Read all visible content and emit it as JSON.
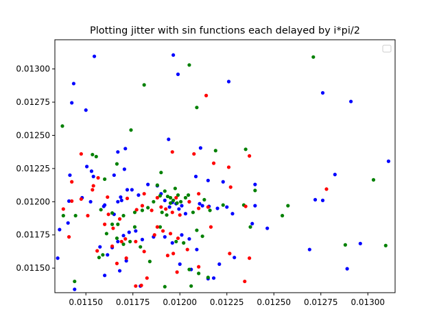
{
  "chart_data": {
    "type": "scatter",
    "title": "Plotting jitter with sin functions each delayed by i*pi/2",
    "xlabel": "",
    "ylabel": "",
    "xlim": [
      0.011335,
      0.013145
    ],
    "ylim": [
      0.011315,
      0.01322
    ],
    "x_ticks": [
      0.0115,
      0.01175,
      0.012,
      0.01225,
      0.0125,
      0.01275,
      0.013
    ],
    "x_tick_labels": [
      "0.01150",
      "0.01175",
      "0.01200",
      "0.01225",
      "0.01250",
      "0.01275",
      "0.01300"
    ],
    "y_ticks": [
      0.0115,
      0.01175,
      0.012,
      0.01225,
      0.0125,
      0.01275,
      0.013
    ],
    "y_tick_labels": [
      "0.01150",
      "0.01175",
      "0.01200",
      "0.01225",
      "0.01250",
      "0.01275",
      "0.01300"
    ],
    "legend": {
      "placement": "top-right",
      "entries": []
    },
    "grid": false,
    "series": [
      {
        "color": "#0000ff",
        "points": [
          [
            0.011545,
            0.013095
          ],
          [
            0.011435,
            0.01289
          ],
          [
            0.011965,
            0.013105
          ],
          [
            0.01199,
            0.01296
          ],
          [
            0.01226,
            0.012905
          ],
          [
            0.01276,
            0.01282
          ],
          [
            0.01291,
            0.012755
          ],
          [
            0.011425,
            0.012745
          ],
          [
            0.0115,
            0.01269
          ],
          [
            0.01194,
            0.01247
          ],
          [
            0.01171,
            0.0124
          ],
          [
            0.01211,
            0.012405
          ],
          [
            0.01167,
            0.012375
          ],
          [
            0.011505,
            0.012265
          ],
          [
            0.01153,
            0.01223
          ],
          [
            0.011415,
            0.0122
          ],
          [
            0.01165,
            0.0122
          ],
          [
            0.011705,
            0.012245
          ],
          [
            0.012085,
            0.01219
          ],
          [
            0.01215,
            0.01216
          ],
          [
            0.01223,
            0.01215
          ],
          [
            0.0124,
            0.01213
          ],
          [
            0.012825,
            0.012205
          ],
          [
            0.01311,
            0.012305
          ],
          [
            0.01136,
            0.01179
          ],
          [
            0.011405,
            0.01184
          ],
          [
            0.01141,
            0.012005
          ],
          [
            0.01148,
            0.01203
          ],
          [
            0.011525,
            0.012
          ],
          [
            0.011595,
            0.011965
          ],
          [
            0.0116,
            0.011975
          ],
          [
            0.01165,
            0.011905
          ],
          [
            0.01167,
            0.012
          ],
          [
            0.011685,
            0.012035
          ],
          [
            0.01172,
            0.01209
          ],
          [
            0.011745,
            0.01209
          ],
          [
            0.01178,
            0.01205
          ],
          [
            0.01183,
            0.01213
          ],
          [
            0.01188,
            0.01212
          ],
          [
            0.0119,
            0.01206
          ],
          [
            0.01192,
            0.01201
          ],
          [
            0.011945,
            0.01196
          ],
          [
            0.01196,
            0.011995
          ],
          [
            0.01198,
            0.011985
          ],
          [
            0.011995,
            0.011945
          ],
          [
            0.01201,
            0.01197
          ],
          [
            0.01203,
            0.01191
          ],
          [
            0.01205,
            0.012
          ],
          [
            0.012105,
            0.011985
          ],
          [
            0.01212,
            0.01197
          ],
          [
            0.012155,
            0.011965
          ],
          [
            0.0122,
            0.01195
          ],
          [
            0.01225,
            0.01196
          ],
          [
            0.012385,
            0.011835
          ],
          [
            0.0124,
            0.01197
          ],
          [
            0.012465,
            0.0118
          ],
          [
            0.01276,
            0.01201
          ],
          [
            0.01269,
            0.01164
          ],
          [
            0.01135,
            0.011575
          ],
          [
            0.011575,
            0.01166
          ],
          [
            0.011615,
            0.0116
          ],
          [
            0.01164,
            0.011655
          ],
          [
            0.01167,
            0.0117
          ],
          [
            0.0117,
            0.011745
          ],
          [
            0.01173,
            0.01177
          ],
          [
            0.011765,
            0.01178
          ],
          [
            0.0118,
            0.011715
          ],
          [
            0.01186,
            0.011735
          ],
          [
            0.01192,
            0.011735
          ],
          [
            0.01196,
            0.01169
          ],
          [
            0.01201,
            0.01175
          ],
          [
            0.01205,
            0.01172
          ],
          [
            0.01209,
            0.01164
          ],
          [
            0.012,
            0.01153
          ],
          [
            0.01206,
            0.01149
          ],
          [
            0.01215,
            0.01142
          ],
          [
            0.01218,
            0.011425
          ],
          [
            0.01221,
            0.01153
          ],
          [
            0.01229,
            0.01158
          ],
          [
            0.0116,
            0.011445
          ],
          [
            0.01168,
            0.01148
          ],
          [
            0.011715,
            0.011555
          ],
          [
            0.01179,
            0.011365
          ],
          [
            0.01144,
            0.01134
          ],
          [
            0.01289,
            0.011495
          ],
          [
            0.01296,
            0.011685
          ],
          [
            0.01272,
            0.012015
          ],
          [
            0.01154,
            0.01219
          ],
          [
            0.01169,
            0.01201
          ],
          [
            0.01228,
            0.01191
          ]
        ]
      },
      {
        "color": "#008000",
        "points": [
          [
            0.0116,
            0.01217
          ],
          [
            0.0119,
            0.01222
          ],
          [
            0.01205,
            0.01303
          ],
          [
            0.01271,
            0.01309
          ],
          [
            0.01181,
            0.01288
          ],
          [
            0.01209,
            0.01271
          ],
          [
            0.011375,
            0.01257
          ],
          [
            0.01174,
            0.01254
          ],
          [
            0.011535,
            0.012355
          ],
          [
            0.011555,
            0.01234
          ],
          [
            0.011665,
            0.012285
          ],
          [
            0.01219,
            0.012385
          ],
          [
            0.01235,
            0.012395
          ],
          [
            0.0124,
            0.012085
          ],
          [
            0.01303,
            0.012165
          ],
          [
            0.012575,
            0.01197
          ],
          [
            0.012545,
            0.011895
          ],
          [
            0.01138,
            0.011895
          ],
          [
            0.011445,
            0.011895
          ],
          [
            0.01158,
            0.01194
          ],
          [
            0.01164,
            0.011915
          ],
          [
            0.01167,
            0.01183
          ],
          [
            0.0117,
            0.011895
          ],
          [
            0.01176,
            0.01192
          ],
          [
            0.0118,
            0.011935
          ],
          [
            0.01183,
            0.011955
          ],
          [
            0.01186,
            0.012
          ],
          [
            0.01188,
            0.012125
          ],
          [
            0.011895,
            0.012045
          ],
          [
            0.01192,
            0.01208
          ],
          [
            0.011935,
            0.01204
          ],
          [
            0.01195,
            0.01203
          ],
          [
            0.011965,
            0.01201
          ],
          [
            0.011975,
            0.0121
          ],
          [
            0.011985,
            0.01199
          ],
          [
            0.012005,
            0.012
          ],
          [
            0.01203,
            0.01203
          ],
          [
            0.012045,
            0.01205
          ],
          [
            0.01207,
            0.01192
          ],
          [
            0.01213,
            0.012015
          ],
          [
            0.01216,
            0.011935
          ],
          [
            0.01223,
            0.011975
          ],
          [
            0.01234,
            0.011975
          ],
          [
            0.012375,
            0.01181
          ],
          [
            0.01157,
            0.01158
          ],
          [
            0.01159,
            0.0116
          ],
          [
            0.01161,
            0.01176
          ],
          [
            0.01164,
            0.01183
          ],
          [
            0.011665,
            0.011725
          ],
          [
            0.0117,
            0.01168
          ],
          [
            0.011735,
            0.0117
          ],
          [
            0.01176,
            0.01181
          ],
          [
            0.01179,
            0.01166
          ],
          [
            0.01184,
            0.01155
          ],
          [
            0.011895,
            0.01181
          ],
          [
            0.01193,
            0.0119
          ],
          [
            0.01198,
            0.0117
          ],
          [
            0.01202,
            0.01169
          ],
          [
            0.01205,
            0.01149
          ],
          [
            0.01209,
            0.011785
          ],
          [
            0.01212,
            0.01174
          ],
          [
            0.01215,
            0.01143
          ],
          [
            0.01144,
            0.0114
          ],
          [
            0.01192,
            0.01136
          ],
          [
            0.01206,
            0.011365
          ],
          [
            0.0121,
            0.01146
          ],
          [
            0.01288,
            0.011675
          ],
          [
            0.013095,
            0.01167
          ],
          [
            0.011905,
            0.01192
          ],
          [
            0.01195,
            0.01199
          ],
          [
            0.01199,
            0.01205
          ]
        ]
      },
      {
        "color": "#ff0000",
        "points": [
          [
            0.01214,
            0.0128
          ],
          [
            0.011475,
            0.01236
          ],
          [
            0.01196,
            0.012375
          ],
          [
            0.012075,
            0.01236
          ],
          [
            0.01218,
            0.01229
          ],
          [
            0.01226,
            0.01226
          ],
          [
            0.01237,
            0.012345
          ],
          [
            0.011425,
            0.01215
          ],
          [
            0.01154,
            0.01212
          ],
          [
            0.011565,
            0.01218
          ],
          [
            0.011535,
            0.01209
          ],
          [
            0.01181,
            0.01206
          ],
          [
            0.01188,
            0.01203
          ],
          [
            0.0121,
            0.01206
          ],
          [
            0.01227,
            0.01211
          ],
          [
            0.01278,
            0.012095
          ],
          [
            0.01138,
            0.011945
          ],
          [
            0.011425,
            0.012005
          ],
          [
            0.011475,
            0.01202
          ],
          [
            0.01151,
            0.011895
          ],
          [
            0.011615,
            0.012035
          ],
          [
            0.01162,
            0.011905
          ],
          [
            0.01168,
            0.01187
          ],
          [
            0.01172,
            0.012025
          ],
          [
            0.01177,
            0.01194
          ],
          [
            0.0118,
            0.01197
          ],
          [
            0.01185,
            0.011935
          ],
          [
            0.0119,
            0.01196
          ],
          [
            0.01196,
            0.01192
          ],
          [
            0.012,
            0.0119
          ],
          [
            0.01205,
            0.012
          ],
          [
            0.0121,
            0.01195
          ],
          [
            0.01215,
            0.01196
          ],
          [
            0.012165,
            0.01181
          ],
          [
            0.01235,
            0.011965
          ],
          [
            0.01141,
            0.011735
          ],
          [
            0.0116,
            0.01183
          ],
          [
            0.011645,
            0.0118
          ],
          [
            0.01169,
            0.0117
          ],
          [
            0.01171,
            0.01172
          ],
          [
            0.011765,
            0.0117
          ],
          [
            0.01181,
            0.011625
          ],
          [
            0.011865,
            0.01175
          ],
          [
            0.01191,
            0.01178
          ],
          [
            0.01195,
            0.01176
          ],
          [
            0.01199,
            0.011725
          ],
          [
            0.01204,
            0.01164
          ],
          [
            0.01156,
            0.01163
          ],
          [
            0.01164,
            0.011665
          ],
          [
            0.011665,
            0.011535
          ],
          [
            0.011715,
            0.011575
          ],
          [
            0.011765,
            0.011365
          ],
          [
            0.011795,
            0.01137
          ],
          [
            0.011825,
            0.011425
          ],
          [
            0.011935,
            0.011595
          ],
          [
            0.011965,
            0.01161
          ],
          [
            0.011985,
            0.01147
          ],
          [
            0.0121,
            0.01151
          ],
          [
            0.012265,
            0.01161
          ],
          [
            0.012345,
            0.0114
          ],
          [
            0.01237,
            0.011575
          ],
          [
            0.011925,
            0.011945
          ],
          [
            0.01188,
            0.01181
          ],
          [
            0.01198,
            0.01203
          ]
        ]
      }
    ]
  }
}
